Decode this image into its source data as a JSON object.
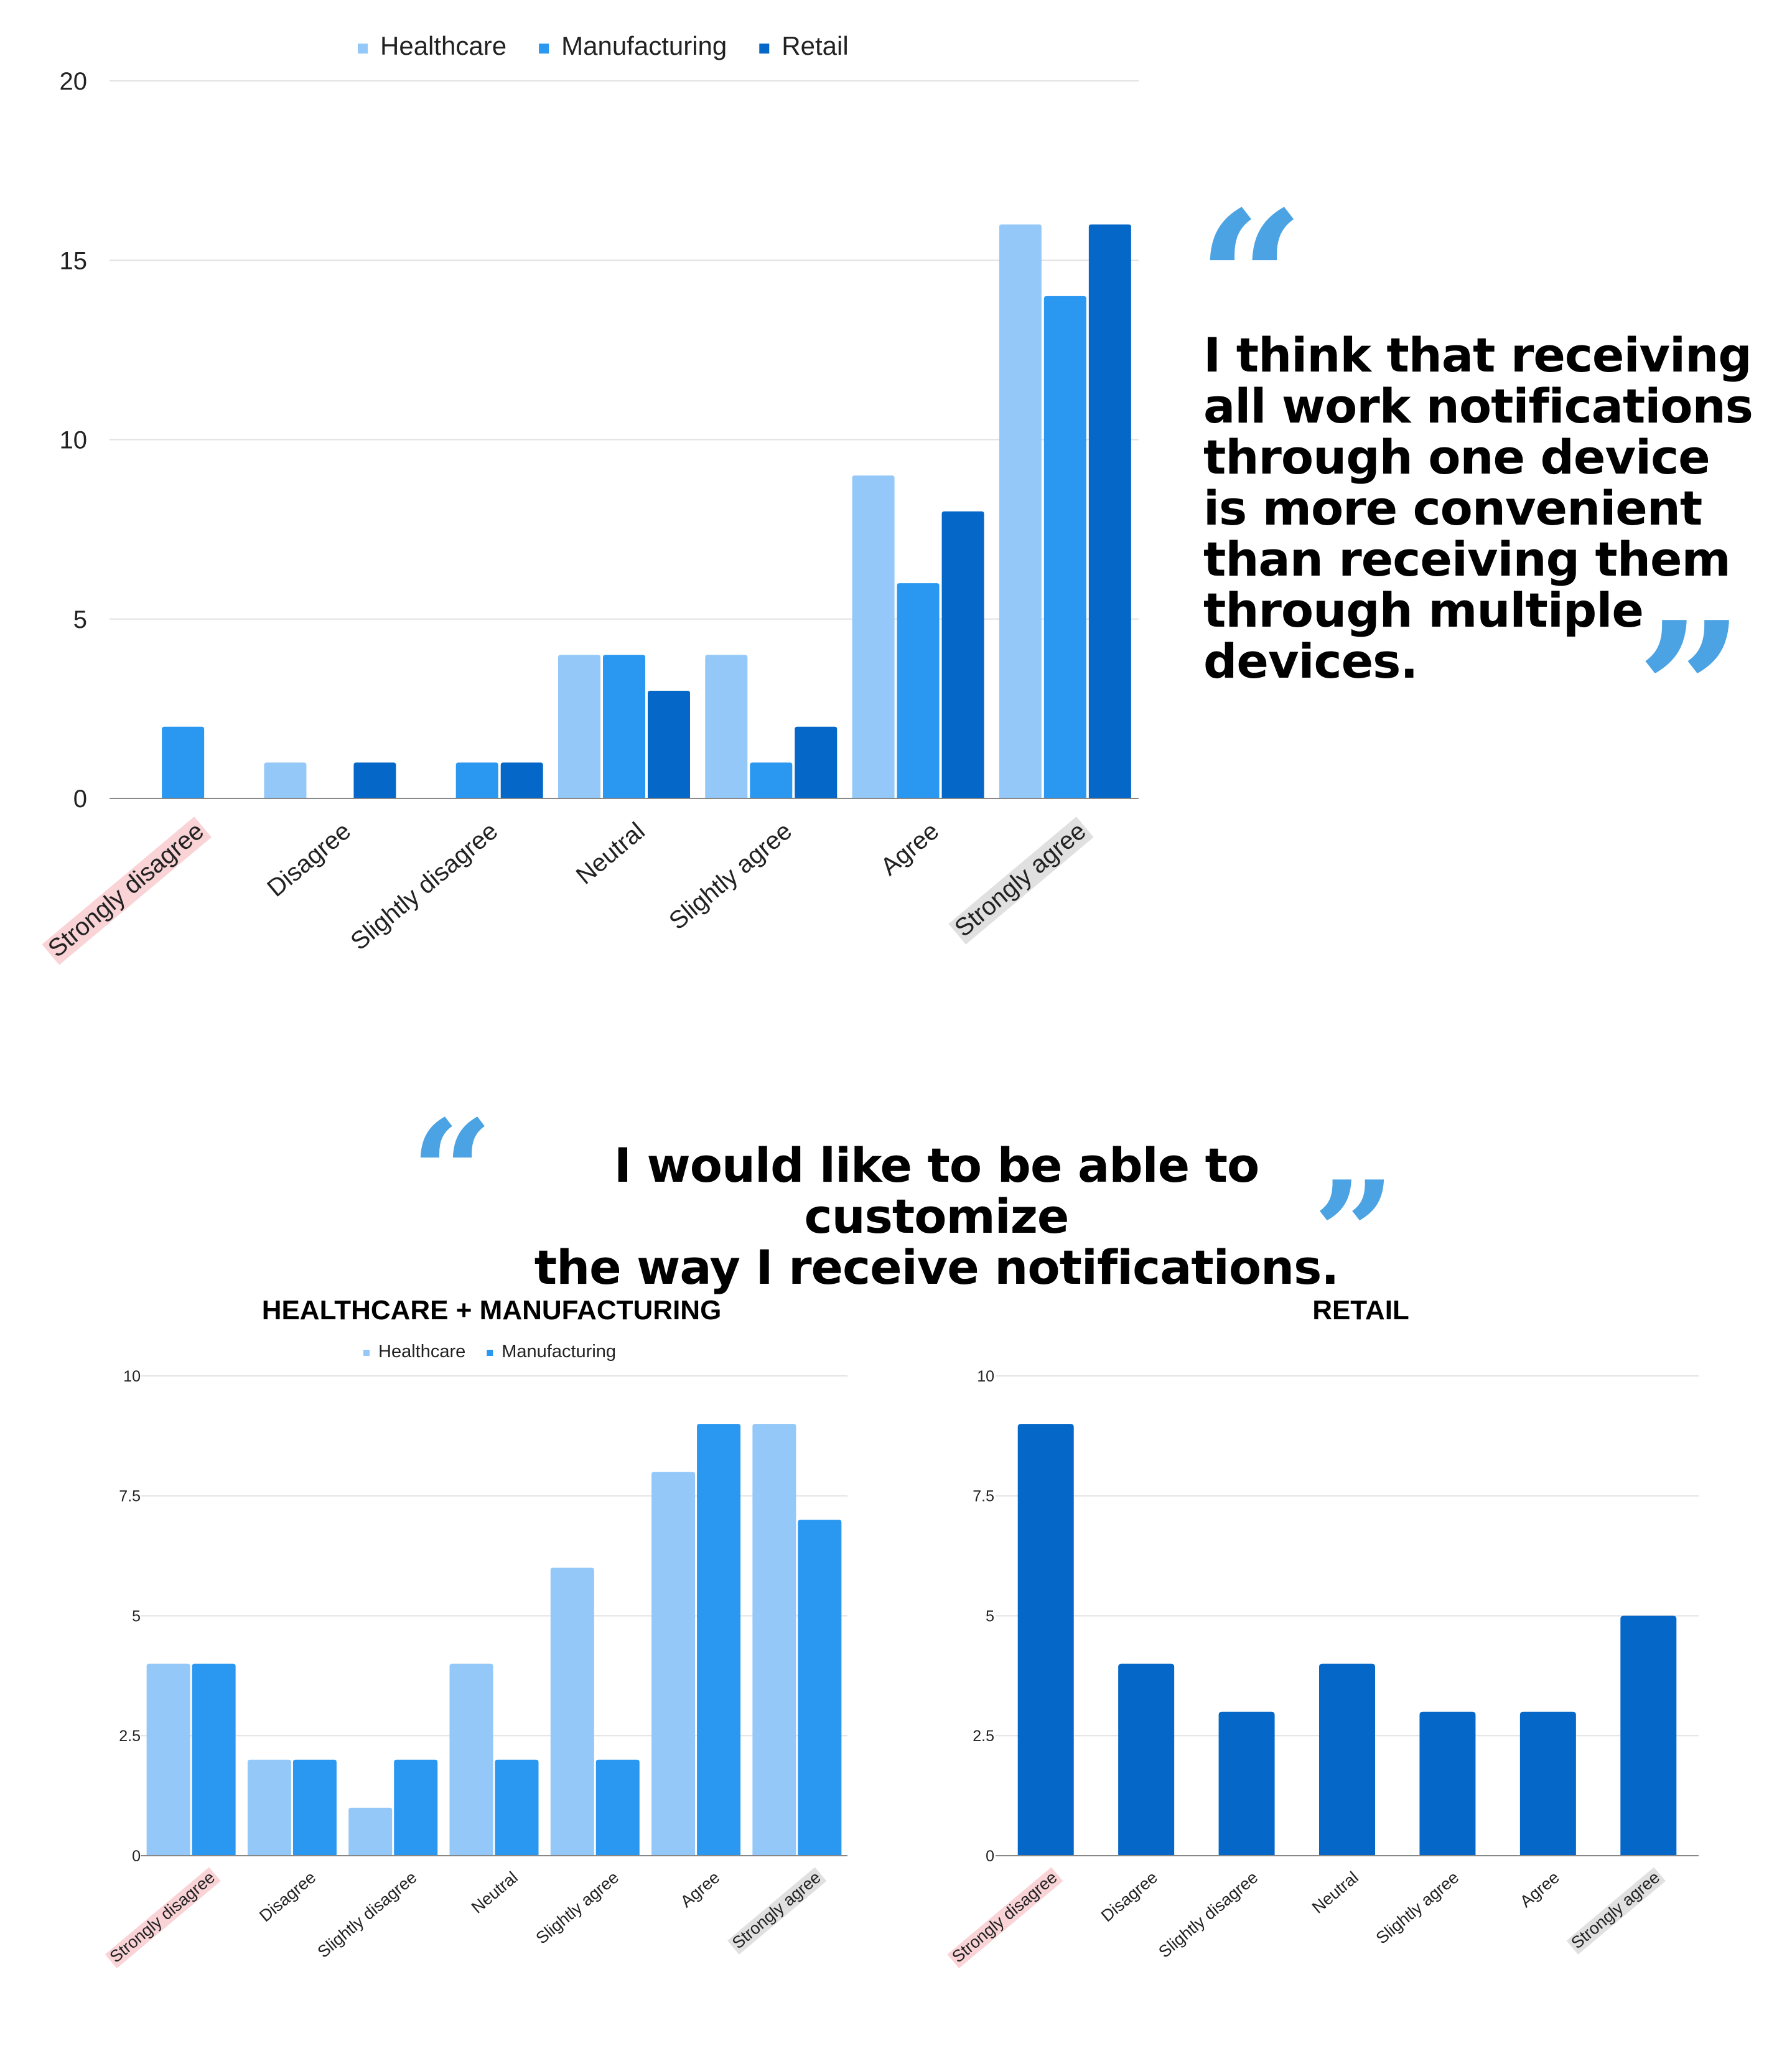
{
  "colors": {
    "healthcare": "#93c8f8",
    "manufacturing": "#2a97f0",
    "retail": "#0567c8",
    "quote_mark": "#4ba3e3",
    "grid": "#e2e2e2",
    "axis": "#888888",
    "highlight_negative": "#f9d3d6",
    "highlight_positive": "#e0e0e0"
  },
  "quotes": {
    "device": "I think that receiving all work notifications through one device is more convenient than receiving them through multiple devices.",
    "customize_line1": "I would like to be able to customize",
    "customize_line2": "the way I receive notifications.",
    "open_mark": "“",
    "close_mark": "”"
  },
  "chart_data": [
    {
      "type": "bar",
      "title": "",
      "xlabel": "",
      "ylabel": "",
      "ylim": [
        0,
        20
      ],
      "yticks": [
        "0",
        "5",
        "10",
        "15",
        "20"
      ],
      "grid": true,
      "legend_position": "top",
      "categories": [
        "Strongly disagree",
        "Disagree",
        "Slightly disagree",
        "Neutral",
        "Slightly agree",
        "Agree",
        "Strongly agree"
      ],
      "series": [
        {
          "name": "Healthcare",
          "color": "#93c8f8",
          "values": [
            0,
            1,
            0,
            4,
            4,
            9,
            16
          ]
        },
        {
          "name": "Manufacturing",
          "color": "#2a97f0",
          "values": [
            2,
            0,
            1,
            4,
            1,
            6,
            14
          ]
        },
        {
          "name": "Retail",
          "color": "#0567c8",
          "values": [
            0,
            1,
            1,
            3,
            2,
            8,
            16
          ]
        }
      ]
    },
    {
      "type": "bar",
      "title": "HEALTHCARE + MANUFACTURING",
      "xlabel": "",
      "ylabel": "",
      "ylim": [
        0,
        10
      ],
      "yticks": [
        "0",
        "2.5",
        "5",
        "7.5",
        "10"
      ],
      "grid": true,
      "legend_position": "top",
      "categories": [
        "Strongly disagree",
        "Disagree",
        "Slightly disagree",
        "Neutral",
        "Slightly agree",
        "Agree",
        "Strongly agree"
      ],
      "series": [
        {
          "name": "Healthcare",
          "color": "#93c8f8",
          "values": [
            4,
            2,
            1,
            4,
            6,
            8,
            9
          ]
        },
        {
          "name": "Manufacturing",
          "color": "#2a97f0",
          "values": [
            4,
            2,
            2,
            2,
            2,
            9,
            7
          ]
        }
      ]
    },
    {
      "type": "bar",
      "title": "RETAIL",
      "xlabel": "",
      "ylabel": "",
      "ylim": [
        0,
        10
      ],
      "yticks": [
        "0",
        "2.5",
        "5",
        "7.5",
        "10"
      ],
      "grid": true,
      "categories": [
        "Strongly disagree",
        "Disagree",
        "Slightly disagree",
        "Neutral",
        "Slightly agree",
        "Agree",
        "Strongly agree"
      ],
      "series": [
        {
          "color": "#0567c8",
          "values": [
            9,
            4,
            3,
            4,
            3,
            3,
            5
          ]
        }
      ]
    }
  ]
}
